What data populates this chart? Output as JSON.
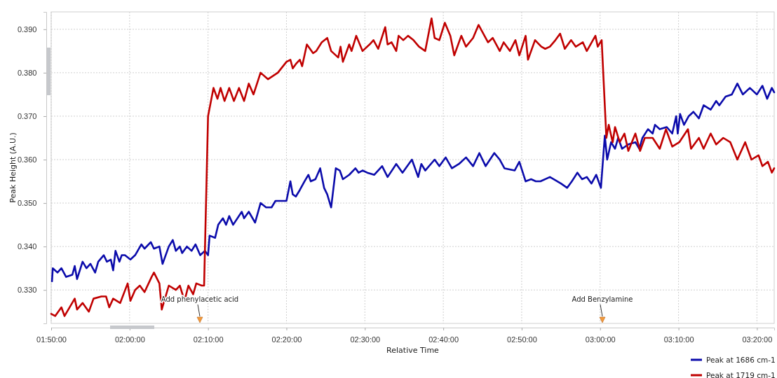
{
  "chart_data": {
    "type": "line",
    "xlabel": "Relative Time",
    "ylabel": "Peak Height (A.U.)",
    "xlim": [
      1.8333,
      3.37
    ],
    "ylim": [
      0.3223,
      0.394
    ],
    "xticks": [
      {
        "value": 1.8333,
        "label": "01:50:00"
      },
      {
        "value": 2.0,
        "label": "02:00:00"
      },
      {
        "value": 2.1667,
        "label": "02:10:00"
      },
      {
        "value": 2.3333,
        "label": "02:20:00"
      },
      {
        "value": 2.5,
        "label": "02:30:00"
      },
      {
        "value": 2.6667,
        "label": "02:40:00"
      },
      {
        "value": 2.8333,
        "label": "02:50:00"
      },
      {
        "value": 3.0,
        "label": "03:00:00"
      },
      {
        "value": 3.1667,
        "label": "03:10:00"
      },
      {
        "value": 3.3333,
        "label": "03:20:00"
      }
    ],
    "yticks": [
      {
        "value": 0.33,
        "label": "0.330"
      },
      {
        "value": 0.34,
        "label": "0.340"
      },
      {
        "value": 0.35,
        "label": "0.350"
      },
      {
        "value": 0.36,
        "label": "0.360"
      },
      {
        "value": 0.37,
        "label": "0.370"
      },
      {
        "value": 0.38,
        "label": "0.380"
      },
      {
        "value": 0.39,
        "label": "0.390"
      }
    ],
    "grid": true,
    "legend": "bottom right",
    "line_style": "solid",
    "marker": "none",
    "annotations": [
      "Add phenylacetic acid",
      "Add Benzylamine"
    ],
    "series": [
      {
        "name": "Peak at 1686 cm-1",
        "color": "#0b0bab",
        "x": [
          1.835,
          1.8367,
          1.8467,
          1.855,
          1.865,
          1.8783,
          1.8833,
          1.8883,
          1.9,
          1.9083,
          1.9167,
          1.9267,
          1.9333,
          1.945,
          1.9517,
          1.96,
          1.965,
          1.97,
          1.9783,
          1.9833,
          1.99,
          2.0017,
          2.0117,
          2.025,
          2.0317,
          2.045,
          2.0517,
          2.0633,
          2.07,
          2.0833,
          2.0917,
          2.0983,
          2.1067,
          2.1117,
          2.1217,
          2.1317,
          2.14,
          2.15,
          2.16,
          2.1667,
          2.17,
          2.1817,
          2.1883,
          2.1983,
          2.205,
          2.2117,
          2.22,
          2.2383,
          2.2433,
          2.2533,
          2.2667,
          2.2783,
          2.29,
          2.3017,
          2.31,
          2.3333,
          2.3417,
          2.3467,
          2.3533,
          2.3617,
          2.3717,
          2.38,
          2.385,
          2.395,
          2.405,
          2.4133,
          2.42,
          2.4283,
          2.4383,
          2.4467,
          2.4533,
          2.4667,
          2.48,
          2.4867,
          2.495,
          2.505,
          2.52,
          2.5367,
          2.5483,
          2.5667,
          2.58,
          2.6,
          2.6133,
          2.62,
          2.6283,
          2.6483,
          2.6583,
          2.6717,
          2.685,
          2.7,
          2.715,
          2.73,
          2.7433,
          2.7567,
          2.775,
          2.7867,
          2.7967,
          2.8183,
          2.8283,
          2.8417,
          2.8533,
          2.8633,
          2.8733,
          2.8933,
          2.9167,
          2.93,
          2.94,
          2.9517,
          2.9617,
          2.9717,
          2.9817,
          2.9917,
          3.0017,
          3.01,
          3.015,
          3.0233,
          3.0317,
          3.0383,
          3.0467,
          3.06,
          3.075,
          3.0833,
          3.09,
          3.1017,
          3.1117,
          3.1167,
          3.1267,
          3.1417,
          3.1533,
          3.1617,
          3.165,
          3.17,
          3.1783,
          3.1883,
          3.1983,
          3.21,
          3.22,
          3.235,
          3.2467,
          3.2533,
          3.2667,
          3.28,
          3.2917,
          3.3033,
          3.3183,
          3.3333,
          3.345,
          3.355,
          3.365,
          3.37
        ],
        "values": [
          0.332,
          0.335,
          0.334,
          0.335,
          0.333,
          0.3335,
          0.3355,
          0.3325,
          0.3365,
          0.335,
          0.336,
          0.334,
          0.3365,
          0.338,
          0.3365,
          0.337,
          0.3345,
          0.339,
          0.3365,
          0.338,
          0.338,
          0.337,
          0.338,
          0.3405,
          0.3395,
          0.341,
          0.3395,
          0.34,
          0.336,
          0.34,
          0.3415,
          0.339,
          0.34,
          0.3385,
          0.34,
          0.339,
          0.3405,
          0.338,
          0.339,
          0.338,
          0.3425,
          0.342,
          0.345,
          0.3465,
          0.345,
          0.347,
          0.345,
          0.348,
          0.3465,
          0.348,
          0.3455,
          0.35,
          0.349,
          0.349,
          0.3505,
          0.3505,
          0.355,
          0.352,
          0.3515,
          0.353,
          0.355,
          0.3565,
          0.355,
          0.3555,
          0.358,
          0.3535,
          0.352,
          0.349,
          0.358,
          0.3575,
          0.3555,
          0.3565,
          0.358,
          0.357,
          0.3575,
          0.357,
          0.3565,
          0.3585,
          0.356,
          0.359,
          0.357,
          0.36,
          0.356,
          0.359,
          0.3575,
          0.36,
          0.3585,
          0.3605,
          0.358,
          0.359,
          0.3605,
          0.3585,
          0.3615,
          0.3585,
          0.3615,
          0.36,
          0.358,
          0.3575,
          0.3595,
          0.355,
          0.3555,
          0.355,
          0.355,
          0.356,
          0.3545,
          0.3535,
          0.355,
          0.357,
          0.3555,
          0.356,
          0.3545,
          0.3565,
          0.3535,
          0.3655,
          0.36,
          0.364,
          0.3625,
          0.365,
          0.3625,
          0.3635,
          0.364,
          0.3625,
          0.365,
          0.367,
          0.366,
          0.368,
          0.367,
          0.3675,
          0.366,
          0.37,
          0.366,
          0.3705,
          0.368,
          0.37,
          0.371,
          0.3695,
          0.3725,
          0.3715,
          0.3735,
          0.3725,
          0.3745,
          0.375,
          0.3775,
          0.375,
          0.3765,
          0.375,
          0.377,
          0.374,
          0.3765,
          0.3755
        ]
      },
      {
        "name": "Peak at 1719 cm-1",
        "color": "#c00000",
        "x": [
          1.8333,
          1.8417,
          1.855,
          1.8617,
          1.8833,
          1.8883,
          1.9,
          1.9133,
          1.9233,
          1.94,
          1.95,
          1.9567,
          1.965,
          1.98,
          1.9958,
          2.0017,
          2.0117,
          2.0217,
          2.0317,
          2.0467,
          2.0517,
          2.0633,
          2.0683,
          2.0833,
          2.0983,
          2.1067,
          2.1167,
          2.125,
          2.135,
          2.1417,
          2.1533,
          2.1583,
          2.1667,
          2.1783,
          2.1867,
          2.1933,
          2.2017,
          2.2117,
          2.2217,
          2.2325,
          2.2433,
          2.2533,
          2.2633,
          2.2783,
          2.2942,
          2.315,
          2.3333,
          2.3417,
          2.3467,
          2.3533,
          2.3617,
          2.3667,
          2.3767,
          2.39,
          2.3967,
          2.4083,
          2.42,
          2.4283,
          2.4433,
          2.4483,
          2.4533,
          2.4667,
          2.4717,
          2.4817,
          2.495,
          2.51,
          2.5183,
          2.5283,
          2.5433,
          2.5483,
          2.5567,
          2.5667,
          2.5717,
          2.5817,
          2.5917,
          2.6033,
          2.615,
          2.6283,
          2.6417,
          2.6483,
          2.6583,
          2.67,
          2.6817,
          2.69,
          2.705,
          2.715,
          2.73,
          2.7417,
          2.7617,
          2.7717,
          2.7867,
          2.795,
          2.8083,
          2.82,
          2.8283,
          2.8417,
          2.8467,
          2.8617,
          2.875,
          2.8833,
          2.8933,
          2.905,
          2.915,
          2.925,
          2.9383,
          2.9483,
          2.9633,
          2.9717,
          2.99,
          2.995,
          3.0033,
          3.0133,
          3.0183,
          3.0267,
          3.0317,
          3.0417,
          3.0517,
          3.06,
          3.075,
          3.085,
          3.095,
          3.1117,
          3.1267,
          3.14,
          3.1533,
          3.1683,
          3.1867,
          3.1933,
          3.21,
          3.22,
          3.235,
          3.2467,
          3.2617,
          3.2767,
          3.2917,
          3.3083,
          3.3217,
          3.3367,
          3.345,
          3.3567,
          3.365,
          3.37
        ],
        "values": [
          0.3245,
          0.324,
          0.326,
          0.324,
          0.328,
          0.3255,
          0.327,
          0.325,
          0.328,
          0.3285,
          0.3285,
          0.326,
          0.328,
          0.327,
          0.3315,
          0.3275,
          0.33,
          0.331,
          0.3295,
          0.333,
          0.334,
          0.3315,
          0.3255,
          0.331,
          0.33,
          0.331,
          0.3275,
          0.331,
          0.329,
          0.3315,
          0.331,
          0.331,
          0.37,
          0.3765,
          0.374,
          0.3765,
          0.3735,
          0.3765,
          0.3735,
          0.3765,
          0.3735,
          0.3775,
          0.375,
          0.38,
          0.3785,
          0.38,
          0.3825,
          0.383,
          0.381,
          0.382,
          0.383,
          0.3815,
          0.3865,
          0.3845,
          0.385,
          0.387,
          0.388,
          0.385,
          0.3835,
          0.386,
          0.3825,
          0.3865,
          0.385,
          0.3885,
          0.385,
          0.3865,
          0.3875,
          0.3855,
          0.3905,
          0.3865,
          0.387,
          0.385,
          0.3885,
          0.3875,
          0.3885,
          0.3875,
          0.386,
          0.385,
          0.3925,
          0.388,
          0.3875,
          0.3915,
          0.3885,
          0.384,
          0.3885,
          0.386,
          0.388,
          0.391,
          0.387,
          0.388,
          0.385,
          0.387,
          0.385,
          0.3875,
          0.384,
          0.3885,
          0.383,
          0.3875,
          0.386,
          0.3855,
          0.386,
          0.3875,
          0.389,
          0.3855,
          0.3875,
          0.386,
          0.387,
          0.385,
          0.3885,
          0.386,
          0.3875,
          0.365,
          0.368,
          0.364,
          0.3675,
          0.364,
          0.366,
          0.362,
          0.366,
          0.362,
          0.365,
          0.365,
          0.3625,
          0.367,
          0.363,
          0.364,
          0.367,
          0.3625,
          0.365,
          0.3625,
          0.366,
          0.3635,
          0.365,
          0.364,
          0.36,
          0.364,
          0.36,
          0.361,
          0.3585,
          0.3595,
          0.357,
          0.358
        ]
      }
    ]
  }
}
